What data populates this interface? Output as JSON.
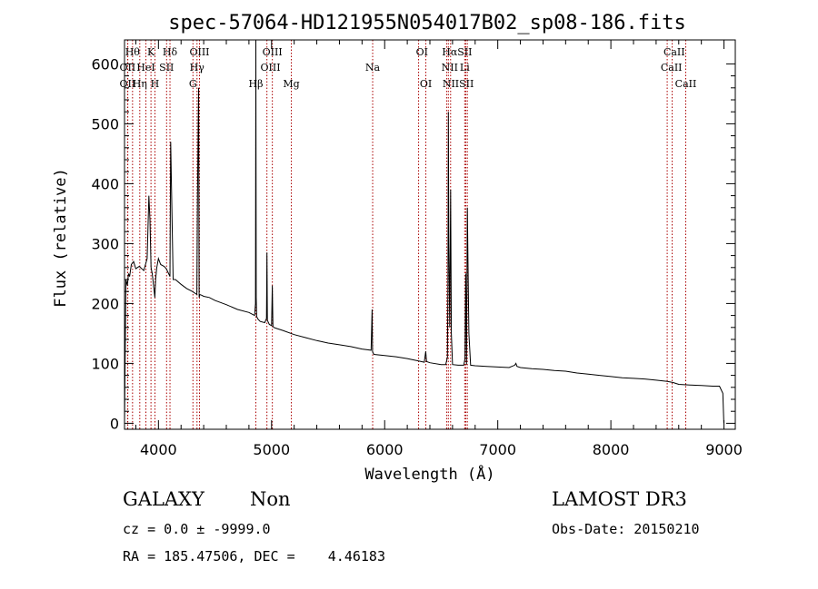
{
  "chart_data": {
    "type": "line",
    "title": "spec-57064-HD121955N054017B02_sp08-186.fits",
    "xlabel": "Wavelength (Å)",
    "ylabel": "Flux (relative)",
    "xlim": [
      3700,
      9100
    ],
    "ylim": [
      -10,
      640
    ],
    "xticks": [
      4000,
      5000,
      6000,
      7000,
      8000,
      9000
    ],
    "yticks": [
      0,
      100,
      200,
      300,
      400,
      500,
      600
    ],
    "grid": false,
    "series": [
      {
        "name": "spectrum",
        "x": [
          3700,
          3712,
          3725,
          3735,
          3745,
          3760,
          3780,
          3800,
          3830,
          3870,
          3900,
          3915,
          3925,
          3935,
          3945,
          3968,
          3975,
          3985,
          4000,
          4020,
          4050,
          4070,
          4090,
          4102,
          4108,
          4130,
          4150,
          4200,
          4250,
          4300,
          4340,
          4345,
          4355,
          4360,
          4365,
          4380,
          4400,
          4450,
          4500,
          4600,
          4700,
          4800,
          4850,
          4858,
          4861,
          4864,
          4868,
          4880,
          4900,
          4940,
          4955,
          4959,
          4963,
          4980,
          5000,
          5007,
          5012,
          5020,
          5050,
          5100,
          5200,
          5300,
          5400,
          5500,
          5600,
          5700,
          5800,
          5880,
          5889,
          5893,
          5896,
          5905,
          6000,
          6100,
          6200,
          6300,
          6350,
          6363,
          6370,
          6400,
          6500,
          6540,
          6555,
          6560,
          6563,
          6567,
          6575,
          6583,
          6590,
          6600,
          6650,
          6700,
          6710,
          6717,
          6724,
          6731,
          6737,
          6745,
          6760,
          6800,
          6900,
          7000,
          7100,
          7150,
          7160,
          7170,
          7200,
          7300,
          7400,
          7500,
          7600,
          7700,
          7800,
          7900,
          8000,
          8100,
          8200,
          8300,
          8400,
          8500,
          8550,
          8600,
          8700,
          8800,
          8900,
          8960,
          8990,
          8999
        ],
        "y": [
          0,
          240,
          230,
          250,
          245,
          265,
          270,
          258,
          262,
          255,
          275,
          380,
          340,
          260,
          250,
          210,
          240,
          260,
          275,
          265,
          262,
          258,
          250,
          245,
          470,
          240,
          240,
          232,
          225,
          220,
          215,
          380,
          560,
          210,
          215,
          214,
          212,
          210,
          205,
          198,
          190,
          185,
          180,
          200,
          640,
          210,
          178,
          174,
          170,
          168,
          175,
          285,
          172,
          165,
          163,
          230,
          162,
          160,
          158,
          155,
          148,
          143,
          138,
          134,
          131,
          128,
          124,
          122,
          190,
          120,
          118,
          115,
          113,
          111,
          108,
          104,
          102,
          120,
          103,
          101,
          98,
          98,
          110,
          250,
          520,
          300,
          160,
          390,
          150,
          98,
          97,
          97,
          108,
          250,
          98,
          360,
          270,
          150,
          97,
          96,
          95,
          94,
          93,
          97,
          100,
          95,
          93,
          91,
          90,
          88,
          87,
          84,
          82,
          80,
          78,
          76,
          75,
          74,
          72,
          70,
          68,
          65,
          64,
          63,
          62,
          62,
          50,
          0
        ]
      }
    ],
    "spectral_lines": [
      {
        "label": "OII",
        "wavelength": 3727
      },
      {
        "label": "OII",
        "wavelength": 3729
      },
      {
        "label": "Hθ",
        "wavelength": 3771
      },
      {
        "label": "Hη",
        "wavelength": 3835
      },
      {
        "label": "HeI",
        "wavelength": 3889
      },
      {
        "label": "K",
        "wavelength": 3934
      },
      {
        "label": "H",
        "wavelength": 3969
      },
      {
        "label": "SII",
        "wavelength": 4072
      },
      {
        "label": "Hδ",
        "wavelength": 4102
      },
      {
        "label": "G",
        "wavelength": 4305
      },
      {
        "label": "Hγ",
        "wavelength": 4341
      },
      {
        "label": "OIII",
        "wavelength": 4363
      },
      {
        "label": "Hβ",
        "wavelength": 4861
      },
      {
        "label": "OIII",
        "wavelength": 4959
      },
      {
        "label": "OIII",
        "wavelength": 5007
      },
      {
        "label": "Mg",
        "wavelength": 5175
      },
      {
        "label": "Na",
        "wavelength": 5894
      },
      {
        "label": "OI",
        "wavelength": 6300
      },
      {
        "label": "OI",
        "wavelength": 6364
      },
      {
        "label": "NII",
        "wavelength": 6548
      },
      {
        "label": "Hα",
        "wavelength": 6563
      },
      {
        "label": "NII",
        "wavelength": 6583
      },
      {
        "label": "Li",
        "wavelength": 6708
      },
      {
        "label": "SII",
        "wavelength": 6717
      },
      {
        "label": "SII",
        "wavelength": 6731
      },
      {
        "label": "CaII",
        "wavelength": 8498
      },
      {
        "label": "CaII",
        "wavelength": 8542
      },
      {
        "label": "CaII",
        "wavelength": 8662
      }
    ],
    "line_label_rows": [
      {
        "labels": [
          "Hθ",
          "K",
          "Hδ",
          "OIII",
          "OIII",
          "OI",
          "HαSII",
          "CaII"
        ]
      },
      {
        "labels": [
          "OII",
          "HeI",
          "SII",
          "Hγ",
          "OIII",
          "Na",
          "NII",
          "Li",
          "CaII"
        ]
      },
      {
        "labels": [
          "OII",
          "Hη",
          "H",
          "G",
          "Hβ",
          "Mg",
          "OI",
          "NIISII",
          "CaII"
        ]
      }
    ]
  },
  "info": {
    "class_label": "GALAXY",
    "subclass_label": "Non",
    "survey": "LAMOST DR3",
    "cz_line": "cz = 0.0 ± -9999.0",
    "obs_date_line": "Obs-Date: 20150210",
    "radec_line": "RA = 185.47506, DEC =    4.46183"
  },
  "colors": {
    "spectrum": "#000000",
    "line_markers": "#aa0000"
  }
}
